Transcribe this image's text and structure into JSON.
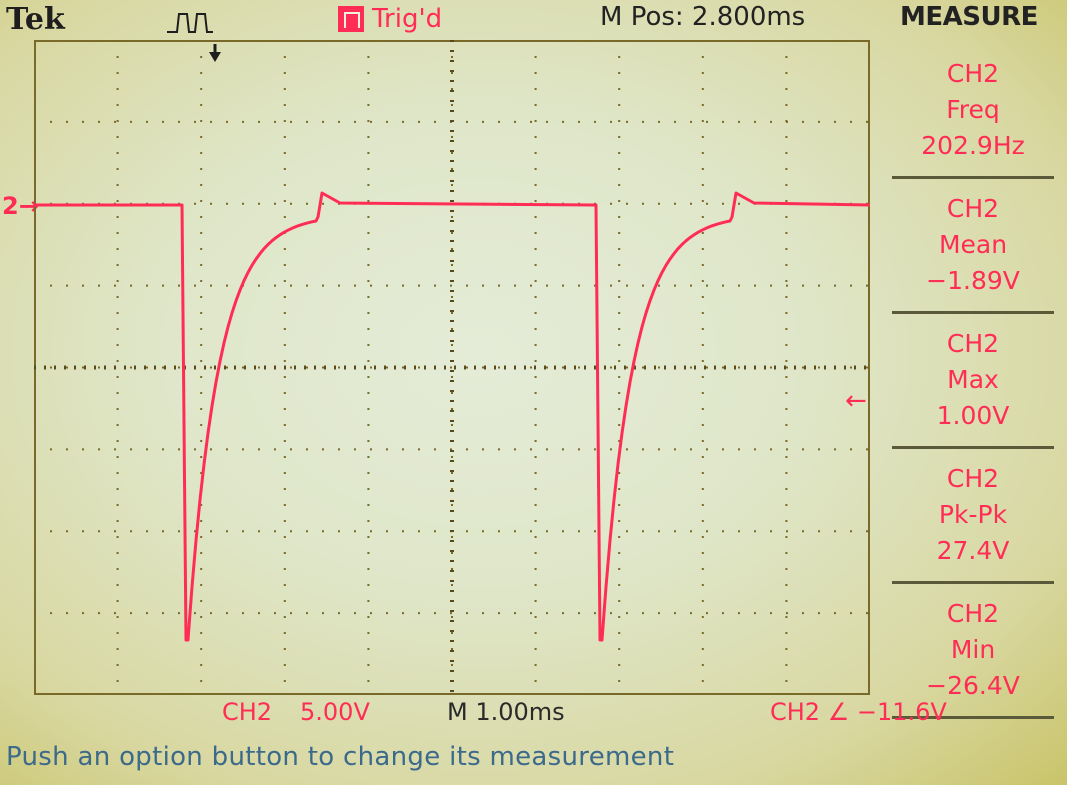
{
  "header": {
    "brand": "Tek",
    "trigger_status": "Trig'd",
    "position": "M Pos: 2.800ms",
    "menu_title": "MEASURE"
  },
  "channel_marker": "2",
  "measurements": [
    {
      "channel": "CH2",
      "type": "Freq",
      "value": "202.9Hz"
    },
    {
      "channel": "CH2",
      "type": "Mean",
      "value": "−1.89V"
    },
    {
      "channel": "CH2",
      "type": "Max",
      "value": "1.00V"
    },
    {
      "channel": "CH2",
      "type": "Pk-Pk",
      "value": "27.4V"
    },
    {
      "channel": "CH2",
      "type": "Min",
      "value": "−26.4V"
    }
  ],
  "status_bar": {
    "channel": "CH2",
    "volts_per_div": "5.00V",
    "time_per_div": "M 1.00ms",
    "trigger": "CH2 ∠ −11.6V"
  },
  "help_text": "Push an option button to change its measurement",
  "colors": {
    "trace": "#ff2d55",
    "graticule": "#7a6a2a",
    "screen": "#e4ecd8"
  },
  "icons": {
    "trigger_edge": "rising-edge-trigger-icon",
    "trigger_level": "left-arrow-icon"
  }
}
